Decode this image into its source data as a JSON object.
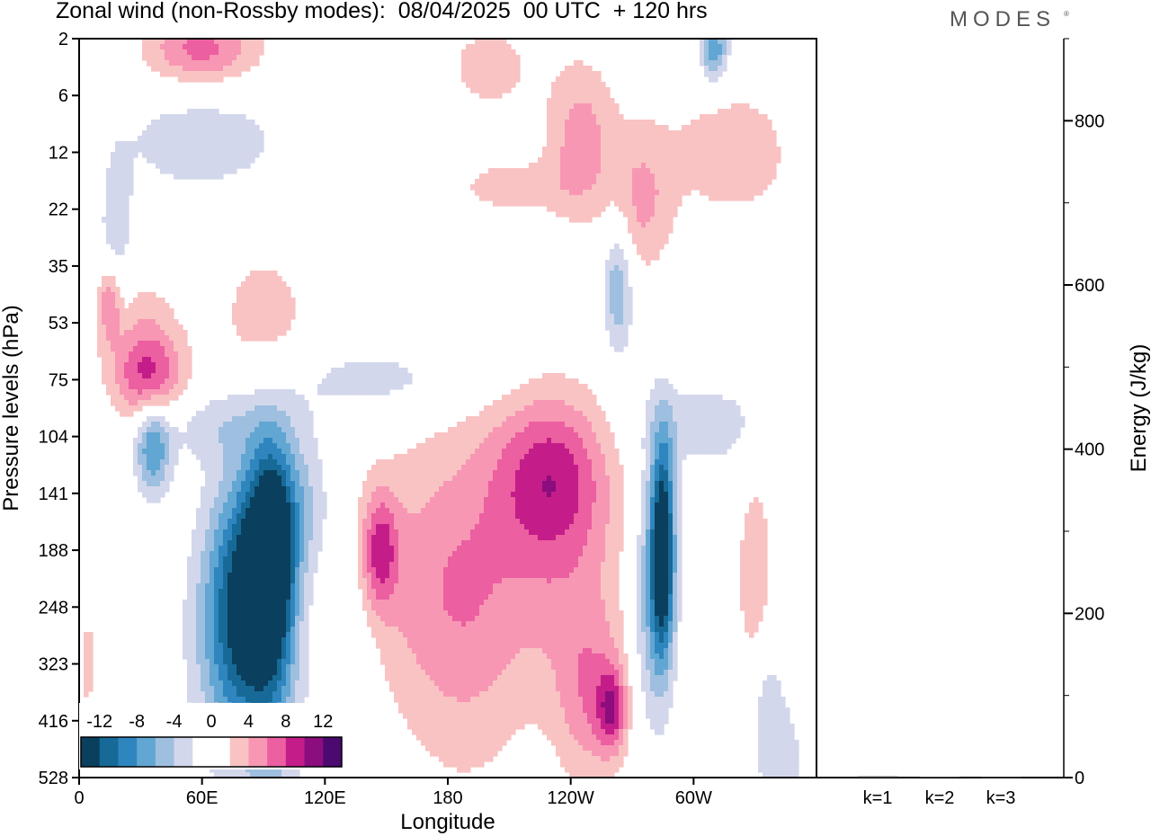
{
  "title": "Zonal wind (non-Rossby modes):  08/04/2025  00 UTC  + 120 hrs",
  "logo": "MODES",
  "logo_mark": "®",
  "colors": {
    "levels": [
      "#0b3f5e",
      "#176a97",
      "#2f86bf",
      "#62a6d3",
      "#9ebfdf",
      "#d3d7ec",
      "#ffffff",
      "#ffffff",
      "#f9c3c3",
      "#f797b4",
      "#ec5fa0",
      "#c41d89",
      "#8b0d7e",
      "#4c0970"
    ]
  },
  "chart_data": [
    {
      "type": "heatmap",
      "title": "Zonal wind (non-Rossby modes):  08/04/2025  00 UTC  + 120 hrs",
      "xlabel": "Longitude",
      "ylabel": "Pressure levels (hPa)",
      "x_ticks": [
        "0",
        "60E",
        "120E",
        "180",
        "120W",
        "60W"
      ],
      "x_tick_values": [
        0,
        60,
        120,
        180,
        240,
        300
      ],
      "xlim": [
        0,
        360
      ],
      "y_ticks": [
        "2",
        "6",
        "12",
        "22",
        "35",
        "53",
        "75",
        "104",
        "141",
        "188",
        "248",
        "323",
        "416",
        "528"
      ],
      "colorbar_labels": [
        "-12",
        "-8",
        "-4",
        "0",
        "4",
        "8",
        "12"
      ],
      "colorbar_levels": [
        -14,
        -12,
        -10,
        -8,
        -6,
        -4,
        -2,
        0,
        2,
        4,
        6,
        8,
        10,
        12,
        14
      ],
      "features": [
        {
          "x": 94,
          "level": 9.0,
          "sx": 8,
          "sy": 1.3,
          "value": -14
        },
        {
          "x": 82,
          "level": 9.8,
          "sx": 12,
          "sy": 1.6,
          "value": -10
        },
        {
          "x": 72,
          "level": 10.5,
          "sx": 14,
          "sy": 1.6,
          "value": -5
        },
        {
          "x": 96,
          "level": 11.5,
          "sx": 10,
          "sy": 2.0,
          "value": -4
        },
        {
          "x": 110,
          "level": 8.2,
          "sx": 10,
          "sy": 0.9,
          "value": -4
        },
        {
          "x": 130,
          "level": 11.0,
          "sx": 10,
          "sy": 1.5,
          "value": -3
        },
        {
          "x": 36,
          "level": 7.2,
          "sx": 6,
          "sy": 0.6,
          "value": -8
        },
        {
          "x": 65,
          "level": 6.8,
          "sx": 30,
          "sy": 0.45,
          "value": -3
        },
        {
          "x": 145,
          "level": 6.0,
          "sx": 40,
          "sy": 0.45,
          "value": -3
        },
        {
          "x": 285,
          "level": 8.9,
          "sx": 4,
          "sy": 1.3,
          "value": -14
        },
        {
          "x": 280,
          "level": 9.8,
          "sx": 7,
          "sy": 1.6,
          "value": -6
        },
        {
          "x": 305,
          "level": 6.8,
          "sx": 25,
          "sy": 0.6,
          "value": -3
        },
        {
          "x": 263,
          "level": 4.4,
          "sx": 5,
          "sy": 0.8,
          "value": -6
        },
        {
          "x": 310,
          "level": 0.2,
          "sx": 5,
          "sy": 0.4,
          "value": -8
        },
        {
          "x": 60,
          "level": 1.8,
          "sx": 35,
          "sy": 0.8,
          "value": -3
        },
        {
          "x": 18,
          "level": 3.6,
          "sx": 6,
          "sy": 1.0,
          "value": -4
        },
        {
          "x": 345,
          "level": 13.0,
          "sx": 8,
          "sy": 1.0,
          "value": -3
        },
        {
          "x": 335,
          "level": 11.6,
          "sx": 6,
          "sy": 1.0,
          "value": -3
        },
        {
          "x": 230,
          "level": 7.6,
          "sx": 20,
          "sy": 1.0,
          "value": 7
        },
        {
          "x": 236,
          "level": 9.2,
          "sx": 22,
          "sy": 1.6,
          "value": 4
        },
        {
          "x": 160,
          "level": 9.5,
          "sx": 30,
          "sy": 1.7,
          "value": 3
        },
        {
          "x": 190,
          "level": 10.0,
          "sx": 22,
          "sy": 2.2,
          "value": 4
        },
        {
          "x": 147,
          "level": 9.0,
          "sx": 6,
          "sy": 0.7,
          "value": 7
        },
        {
          "x": 250,
          "level": 11.6,
          "sx": 12,
          "sy": 1.1,
          "value": 5
        },
        {
          "x": 260,
          "level": 11.8,
          "sx": 5,
          "sy": 0.5,
          "value": 7
        },
        {
          "x": 330,
          "level": 9.5,
          "sx": 6,
          "sy": 1.3,
          "value": 4
        },
        {
          "x": 35,
          "level": 6.0,
          "sx": 12,
          "sy": 0.6,
          "value": 7
        },
        {
          "x": 28,
          "level": 5.3,
          "sx": 14,
          "sy": 1.0,
          "value": 3
        },
        {
          "x": 90,
          "level": 5.0,
          "sx": 18,
          "sy": 1.1,
          "value": 3
        },
        {
          "x": 245,
          "level": 1.8,
          "sx": 12,
          "sy": 1.0,
          "value": 5
        },
        {
          "x": 275,
          "level": 2.9,
          "sx": 10,
          "sy": 0.9,
          "value": 4
        },
        {
          "x": 320,
          "level": 2.0,
          "sx": 28,
          "sy": 1.0,
          "value": 3
        },
        {
          "x": 60,
          "level": 0.2,
          "sx": 20,
          "sy": 0.45,
          "value": 7
        },
        {
          "x": 200,
          "level": 0.5,
          "sx": 16,
          "sy": 0.6,
          "value": 3
        },
        {
          "x": 210,
          "level": 2.6,
          "sx": 20,
          "sy": 0.35,
          "value": 3
        },
        {
          "x": 4,
          "level": 11.0,
          "sx": 3,
          "sy": 0.7,
          "value": 3
        },
        {
          "x": 15,
          "level": 4.6,
          "sx": 4,
          "sy": 0.5,
          "value": 6
        }
      ]
    },
    {
      "type": "bar",
      "ylabel": "Energy (J/kg)",
      "categories": [
        "k=1",
        "k=2",
        "k=3"
      ],
      "values": [
        1.5,
        1.0,
        0.6
      ],
      "ylim": [
        0,
        900
      ],
      "y_major_ticks": [
        "0",
        "200",
        "400",
        "600",
        "800"
      ],
      "y_major_values": [
        0,
        200,
        400,
        600,
        800
      ],
      "y_minor_values": [
        0,
        100,
        200,
        300,
        400,
        500,
        600,
        700,
        800,
        900
      ]
    }
  ]
}
